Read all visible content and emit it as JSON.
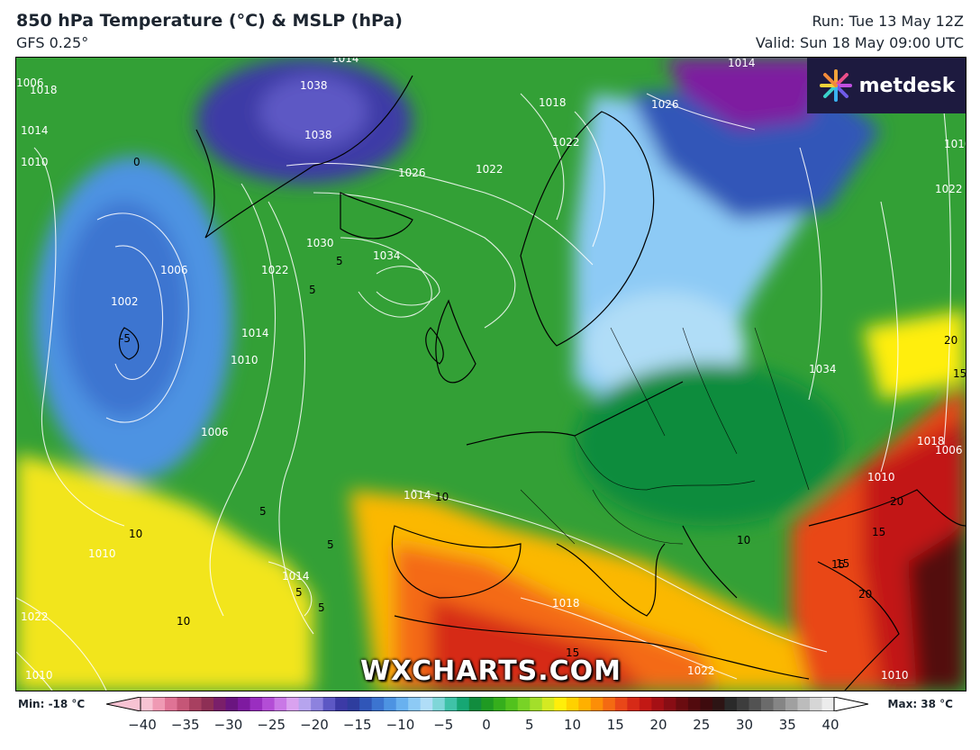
{
  "header": {
    "title": "850 hPa Temperature (°C) & MSLP (hPa)",
    "model": "GFS 0.25°",
    "run": "Run: Tue 13 May 12Z",
    "valid": "Valid: Sun 18 May 09:00 UTC"
  },
  "logo": {
    "text": "metdesk"
  },
  "watermark": "WXCHARTS.COM",
  "colorbar": {
    "min_label": "Min: -18 °C",
    "max_label": "Max: 38 °C",
    "ticks": [
      "−40",
      "−35",
      "−30",
      "−25",
      "−20",
      "−15",
      "−10",
      "−5",
      "0",
      "5",
      "10",
      "15",
      "20",
      "25",
      "30",
      "35",
      "40"
    ],
    "colors": [
      "#f7c3d3",
      "#ef9ab4",
      "#df7395",
      "#c55677",
      "#a84060",
      "#8e2f55",
      "#7a1f6a",
      "#6a1580",
      "#7e1aa0",
      "#9a2ec0",
      "#b34dd6",
      "#c978e6",
      "#d9a2ef",
      "#b6a4ee",
      "#8d82de",
      "#5d58c4",
      "#3c3aa6",
      "#2e3d9e",
      "#3056b8",
      "#3c74d0",
      "#4d93e2",
      "#69b1ef",
      "#8dcaf5",
      "#b0ddf7",
      "#7fd6d8",
      "#3fc2a8",
      "#16a774",
      "#118c3e",
      "#1f9a22",
      "#35ae1c",
      "#52c21d",
      "#78d326",
      "#a3df2a",
      "#d4ea22",
      "#ffee0a",
      "#ffd100",
      "#ffb000",
      "#fc8e07",
      "#f46a12",
      "#e94718",
      "#d62a17",
      "#c21814",
      "#a50f14",
      "#880d14",
      "#6a0c10",
      "#520a0e",
      "#3e0b0e",
      "#2d1414",
      "#2a2a2a",
      "#3d3d3d",
      "#525252",
      "#6b6b6b",
      "#858585",
      "#a0a0a0",
      "#bcbcbc",
      "#d6d6d6",
      "#ececec"
    ]
  },
  "map": {
    "contour_labels": [
      "1006",
      "1014",
      "1038",
      "1038",
      "1034",
      "1010",
      "1026",
      "1022",
      "1026",
      "1022",
      "1018",
      "1014",
      "1014",
      "1010",
      "1006",
      "1002",
      "1022",
      "1014",
      "1010",
      "1006",
      "1030",
      "1034",
      "1018",
      "1022",
      "1010",
      "1014",
      "1018",
      "1014",
      "1022",
      "1010",
      "1010",
      "1006",
      "1010",
      "1018",
      "1022"
    ],
    "temp_labels": [
      "5",
      "-5",
      "0",
      "5",
      "5",
      "5",
      "10",
      "10",
      "10",
      "10",
      "5",
      "5",
      "15",
      "15",
      "20",
      "20",
      "15",
      "15",
      "20",
      "15"
    ]
  }
}
